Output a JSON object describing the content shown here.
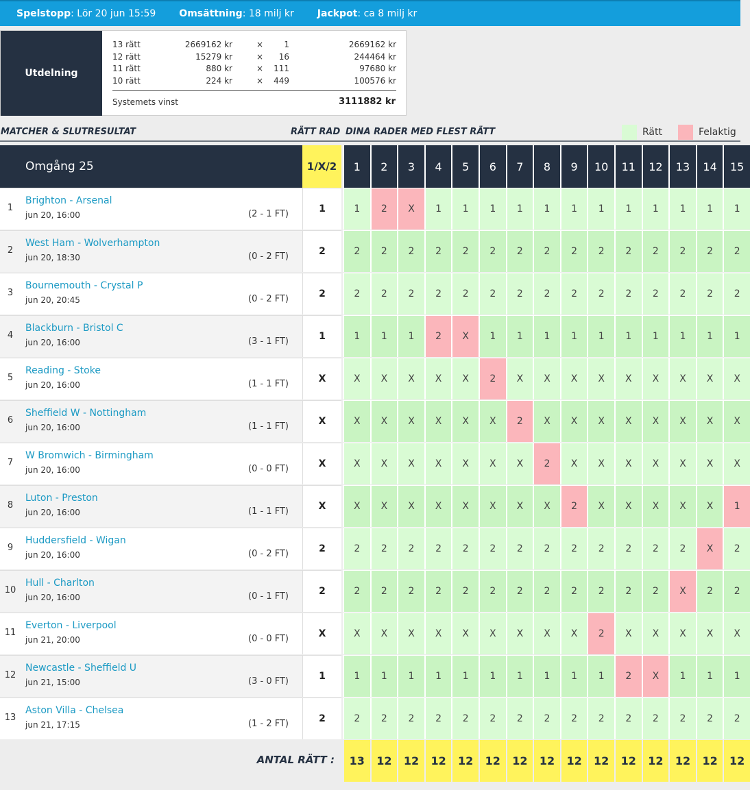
{
  "topbar": {
    "items": [
      {
        "label": "Spelstopp",
        "value": "Lör 20 jun 15:59"
      },
      {
        "label": "Omsättning",
        "value": "18 milj kr"
      },
      {
        "label": "Jackpot",
        "value": "ca 8 milj kr"
      }
    ]
  },
  "payout": {
    "title": "Utdelning",
    "rows": [
      {
        "level": "13 rätt",
        "amount": "2669162 kr",
        "times": "×",
        "count": "1",
        "total": "2669162 kr"
      },
      {
        "level": "12 rätt",
        "amount": "15279 kr",
        "times": "×",
        "count": "16",
        "total": "244464 kr"
      },
      {
        "level": "11 rätt",
        "amount": "880 kr",
        "times": "×",
        "count": "111",
        "total": "97680 kr"
      },
      {
        "level": "10 rätt",
        "amount": "224 kr",
        "times": "×",
        "count": "449",
        "total": "100576 kr"
      }
    ],
    "system_label": "Systemets vinst",
    "system_value": "3111882 kr"
  },
  "sections": {
    "matches": "MATCHER & SLUTRESULTAT",
    "correct": "RÄTT RAD",
    "rows": "DINA RADER MED FLEST RÄTT"
  },
  "legend": {
    "correct_label": "Rätt",
    "wrong_label": "Felaktig"
  },
  "colors": {
    "dark": "#253142",
    "accent": "#149edc",
    "yellow": "#fff35c",
    "correct_a": "#d9fbd4",
    "correct_b": "#c9f4c2",
    "wrong": "#fbb6bb"
  },
  "grid": {
    "round_title": "Omgång 25",
    "result_header": "1/X/2",
    "columns": [
      "1",
      "2",
      "3",
      "4",
      "5",
      "6",
      "7",
      "8",
      "9",
      "10",
      "11",
      "12",
      "13",
      "14",
      "15"
    ]
  },
  "matches": [
    {
      "num": "1",
      "name": "Brighton - Arsenal",
      "date": "jun 20, 16:00",
      "score": "(2 - 1 FT)",
      "result": "1",
      "rows": [
        "1",
        "2",
        "X",
        "1",
        "1",
        "1",
        "1",
        "1",
        "1",
        "1",
        "1",
        "1",
        "1",
        "1",
        "1"
      ],
      "wrong": [
        1,
        2
      ]
    },
    {
      "num": "2",
      "name": "West Ham - Wolverhampton",
      "date": "jun 20, 18:30",
      "score": "(0 - 2 FT)",
      "result": "2",
      "rows": [
        "2",
        "2",
        "2",
        "2",
        "2",
        "2",
        "2",
        "2",
        "2",
        "2",
        "2",
        "2",
        "2",
        "2",
        "2"
      ],
      "wrong": []
    },
    {
      "num": "3",
      "name": "Bournemouth - Crystal P",
      "date": "jun 20, 20:45",
      "score": "(0 - 2 FT)",
      "result": "2",
      "rows": [
        "2",
        "2",
        "2",
        "2",
        "2",
        "2",
        "2",
        "2",
        "2",
        "2",
        "2",
        "2",
        "2",
        "2",
        "2"
      ],
      "wrong": []
    },
    {
      "num": "4",
      "name": "Blackburn - Bristol C",
      "date": "jun 20, 16:00",
      "score": "(3 - 1 FT)",
      "result": "1",
      "rows": [
        "1",
        "1",
        "1",
        "2",
        "X",
        "1",
        "1",
        "1",
        "1",
        "1",
        "1",
        "1",
        "1",
        "1",
        "1"
      ],
      "wrong": [
        3,
        4
      ]
    },
    {
      "num": "5",
      "name": "Reading - Stoke",
      "date": "jun 20, 16:00",
      "score": "(1 - 1 FT)",
      "result": "X",
      "rows": [
        "X",
        "X",
        "X",
        "X",
        "X",
        "2",
        "X",
        "X",
        "X",
        "X",
        "X",
        "X",
        "X",
        "X",
        "X"
      ],
      "wrong": [
        5
      ]
    },
    {
      "num": "6",
      "name": "Sheffield W - Nottingham",
      "date": "jun 20, 16:00",
      "score": "(1 - 1 FT)",
      "result": "X",
      "rows": [
        "X",
        "X",
        "X",
        "X",
        "X",
        "X",
        "2",
        "X",
        "X",
        "X",
        "X",
        "X",
        "X",
        "X",
        "X"
      ],
      "wrong": [
        6
      ]
    },
    {
      "num": "7",
      "name": "W Bromwich - Birmingham",
      "date": "jun 20, 16:00",
      "score": "(0 - 0 FT)",
      "result": "X",
      "rows": [
        "X",
        "X",
        "X",
        "X",
        "X",
        "X",
        "X",
        "2",
        "X",
        "X",
        "X",
        "X",
        "X",
        "X",
        "X"
      ],
      "wrong": [
        7
      ]
    },
    {
      "num": "8",
      "name": "Luton - Preston",
      "date": "jun 20, 16:00",
      "score": "(1 - 1 FT)",
      "result": "X",
      "rows": [
        "X",
        "X",
        "X",
        "X",
        "X",
        "X",
        "X",
        "X",
        "2",
        "X",
        "X",
        "X",
        "X",
        "X",
        "1"
      ],
      "wrong": [
        8,
        14
      ]
    },
    {
      "num": "9",
      "name": "Huddersfield - Wigan",
      "date": "jun 20, 16:00",
      "score": "(0 - 2 FT)",
      "result": "2",
      "rows": [
        "2",
        "2",
        "2",
        "2",
        "2",
        "2",
        "2",
        "2",
        "2",
        "2",
        "2",
        "2",
        "2",
        "X",
        "2"
      ],
      "wrong": [
        13
      ]
    },
    {
      "num": "10",
      "name": "Hull - Charlton",
      "date": "jun 20, 16:00",
      "score": "(0 - 1 FT)",
      "result": "2",
      "rows": [
        "2",
        "2",
        "2",
        "2",
        "2",
        "2",
        "2",
        "2",
        "2",
        "2",
        "2",
        "2",
        "X",
        "2",
        "2"
      ],
      "wrong": [
        12
      ]
    },
    {
      "num": "11",
      "name": "Everton - Liverpool",
      "date": "jun 21, 20:00",
      "score": "(0 - 0 FT)",
      "result": "X",
      "rows": [
        "X",
        "X",
        "X",
        "X",
        "X",
        "X",
        "X",
        "X",
        "X",
        "2",
        "X",
        "X",
        "X",
        "X",
        "X"
      ],
      "wrong": [
        9
      ]
    },
    {
      "num": "12",
      "name": "Newcastle - Sheffield U",
      "date": "jun 21, 15:00",
      "score": "(3 - 0 FT)",
      "result": "1",
      "rows": [
        "1",
        "1",
        "1",
        "1",
        "1",
        "1",
        "1",
        "1",
        "1",
        "1",
        "2",
        "X",
        "1",
        "1",
        "1"
      ],
      "wrong": [
        10,
        11
      ]
    },
    {
      "num": "13",
      "name": "Aston Villa - Chelsea",
      "date": "jun 21, 17:15",
      "score": "(1 - 2 FT)",
      "result": "2",
      "rows": [
        "2",
        "2",
        "2",
        "2",
        "2",
        "2",
        "2",
        "2",
        "2",
        "2",
        "2",
        "2",
        "2",
        "2",
        "2"
      ],
      "wrong": []
    }
  ],
  "footer": {
    "label": "ANTAL RÄTT :",
    "totals": [
      "13",
      "12",
      "12",
      "12",
      "12",
      "12",
      "12",
      "12",
      "12",
      "12",
      "12",
      "12",
      "12",
      "12",
      "12"
    ]
  }
}
